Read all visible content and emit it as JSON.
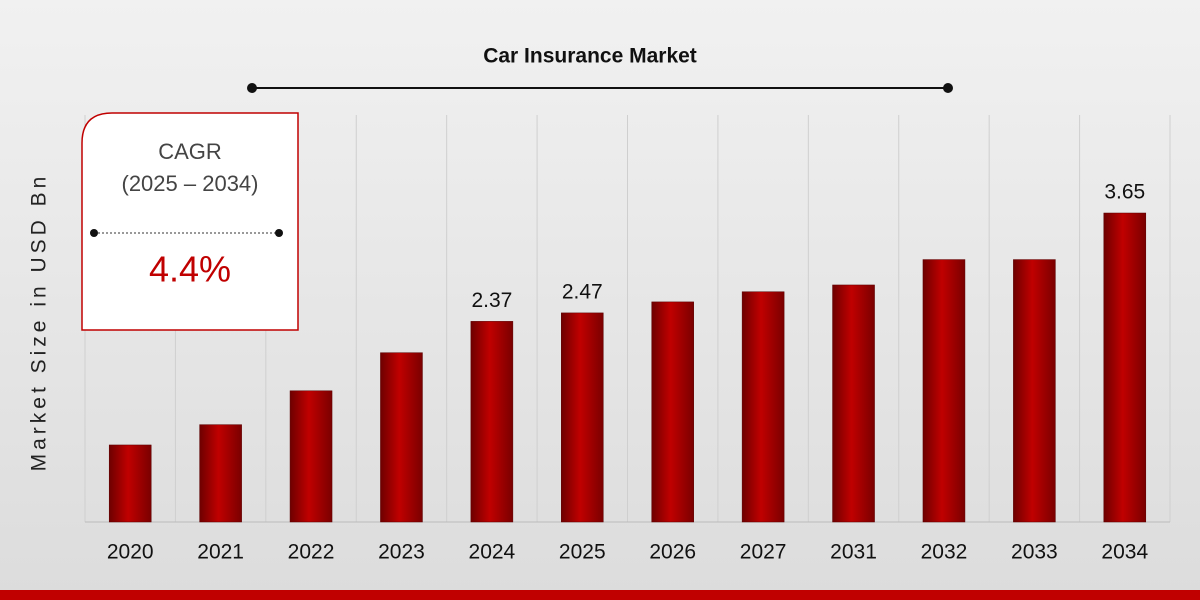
{
  "chart_data": {
    "type": "bar",
    "title": "Car Insurance Market",
    "y_axis_label": "Market Size in USD Bn",
    "categories": [
      "2020",
      "2021",
      "2022",
      "2023",
      "2024",
      "2025",
      "2026",
      "2027",
      "2031",
      "2032",
      "2033",
      "2034"
    ],
    "values": [
      0.91,
      1.15,
      1.55,
      2.0,
      2.37,
      2.47,
      2.6,
      2.72,
      2.8,
      3.1,
      3.1,
      3.65
    ],
    "value_labels": [
      null,
      null,
      null,
      null,
      "2.37",
      "2.47",
      null,
      null,
      null,
      null,
      null,
      "3.65"
    ],
    "color": "#c00000",
    "cagr": {
      "label": "CAGR",
      "period": "(2025 – 2034)",
      "value": "4.4%"
    }
  }
}
